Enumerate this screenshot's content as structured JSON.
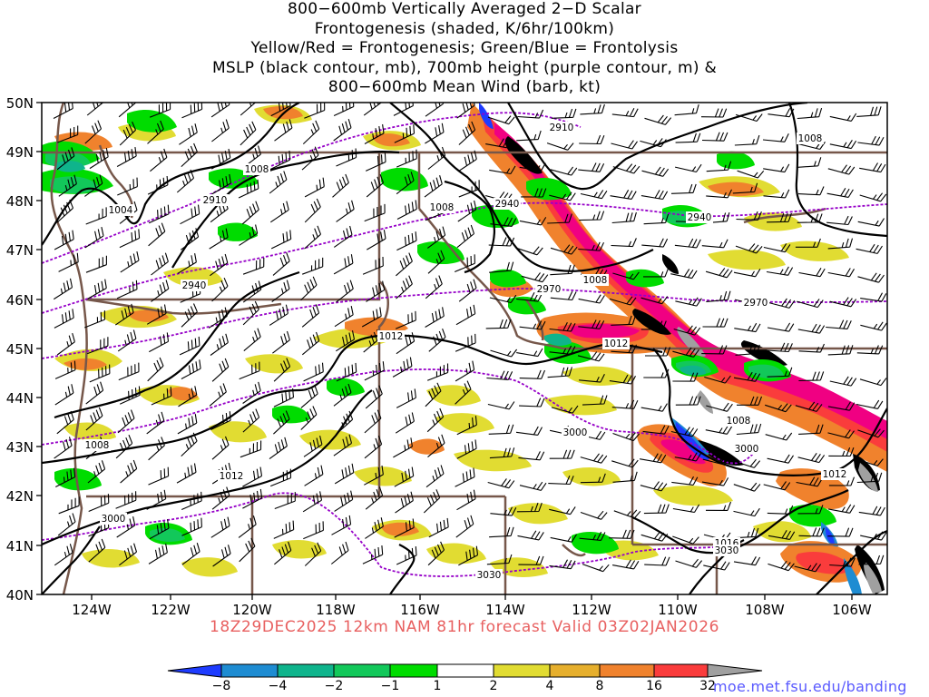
{
  "title_lines": [
    "800−600mb Vertically Averaged 2−D Scalar",
    "Frontogenesis (shaded, K/6hr/100km)",
    "Yellow/Red = Frontogenesis;  Green/Blue = Frontolysis",
    "MSLP (black contour, mb), 700mb height (purple contour, m) &",
    "800−600mb Mean Wind (barb, kt)"
  ],
  "valid_line": "18Z29DEC2025 12km NAM 81hr forecast Valid 03Z02JAN2026",
  "credit": "moe.met.fsu.edu/banding",
  "lat_labels": [
    "50N",
    "49N",
    "48N",
    "47N",
    "46N",
    "45N",
    "44N",
    "43N",
    "42N",
    "41N",
    "40N"
  ],
  "lon_labels": [
    "124W",
    "122W",
    "120W",
    "118W",
    "116W",
    "114W",
    "112W",
    "110W",
    "108W",
    "106W"
  ],
  "mslp_labels": [
    "1004",
    "1008",
    "1008",
    "1008",
    "1008",
    "1008",
    "1008",
    "1012",
    "1012",
    "1012",
    "1012",
    "1016"
  ],
  "height_labels": [
    "2910",
    "2910",
    "2940",
    "2940",
    "2940",
    "2970",
    "2970",
    "3000",
    "3000",
    "3000",
    "3030",
    "3030"
  ],
  "colorbar": {
    "labels": [
      "−8",
      "−4",
      "−2",
      "−1",
      "1",
      "2",
      "4",
      "8",
      "16",
      "32"
    ],
    "colors": [
      "#1e3cff",
      "#1e8cd2",
      "#0fb48c",
      "#12c85a",
      "#00dc00",
      "#ffffff",
      "#e1dc32",
      "#e6af2d",
      "#f0822d",
      "#fa3c3c",
      "#f00082",
      "#000000",
      "#a0a0a0"
    ]
  },
  "colors": {
    "mslp_contour": "#000000",
    "height_contour": "#9600c8",
    "state_borders": "#76574a",
    "valid_text": "#e86060",
    "credit_text": "#5a5aff"
  }
}
